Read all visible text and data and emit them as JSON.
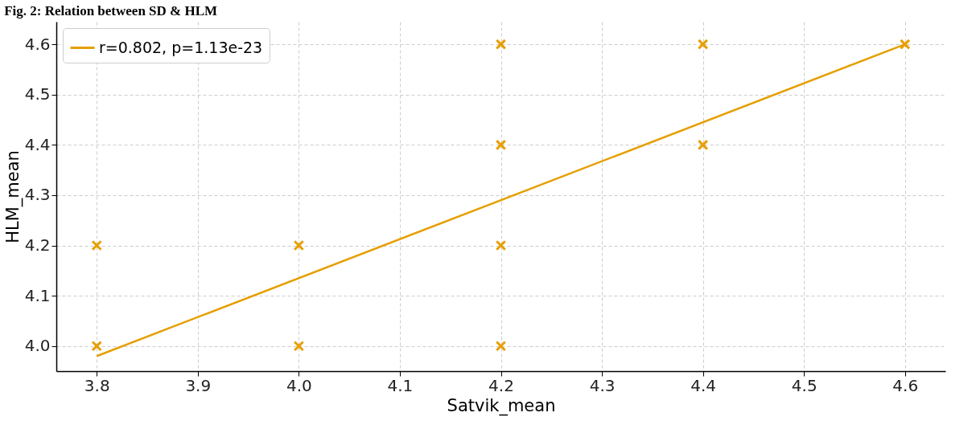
{
  "chart_data": {
    "type": "scatter",
    "title": "Fig. 2: Relation between SD & HLM",
    "xlabel": "Satvik_mean",
    "ylabel": "HLM_mean",
    "xlim": [
      3.76,
      4.64
    ],
    "ylim": [
      3.95,
      4.645
    ],
    "xticks": [
      3.8,
      3.9,
      {
        "value": 4.0,
        "label": "4.0"
      },
      4.1,
      4.2,
      4.3,
      4.4,
      4.5,
      4.6
    ],
    "yticks": [
      {
        "value": 4.0,
        "label": "4.0"
      },
      4.1,
      4.2,
      4.3,
      4.4,
      4.5,
      4.6
    ],
    "grid": true,
    "legend": "top left",
    "series": [
      {
        "color": "#e69f00",
        "marker": "cross",
        "x": [
          3.8,
          3.8,
          4.0,
          4.0,
          4.2,
          4.2,
          4.2,
          4.2,
          4.4,
          4.4,
          4.6
        ],
        "values": [
          4.0,
          4.2,
          4.0,
          4.2,
          4.0,
          4.2,
          4.4,
          4.6,
          4.4,
          4.6,
          4.6
        ]
      },
      {
        "type": "line",
        "name": "r=0.802, p=1.13e-23",
        "color": "#e69f00",
        "x": [
          3.8,
          4.6
        ],
        "values": [
          3.98,
          4.6
        ]
      }
    ]
  }
}
